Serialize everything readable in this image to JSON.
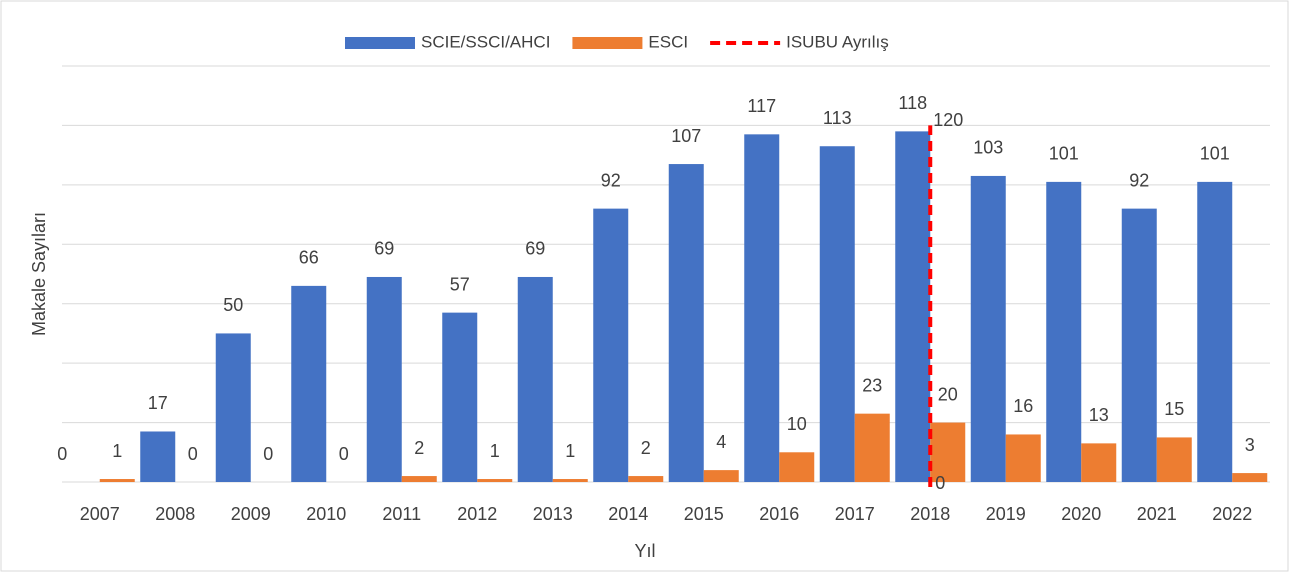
{
  "chart_data": {
    "type": "bar",
    "x_label": "Yıl",
    "y_label": "Makale Sayıları",
    "categories": [
      "2007",
      "2008",
      "2009",
      "2010",
      "2011",
      "2012",
      "2013",
      "2014",
      "2015",
      "2016",
      "2017",
      "2018",
      "2019",
      "2020",
      "2021",
      "2022"
    ],
    "series": [
      {
        "name": "SCIE/SSCI/AHCI",
        "color": "#4472c4",
        "values": [
          0,
          17,
          50,
          66,
          69,
          57,
          69,
          92,
          107,
          117,
          113,
          118,
          103,
          101,
          92,
          101
        ]
      },
      {
        "name": "ESCI",
        "color": "#ed7d31",
        "values": [
          1,
          0,
          0,
          0,
          2,
          1,
          1,
          2,
          4,
          10,
          23,
          20,
          16,
          13,
          15,
          3
        ]
      }
    ],
    "reference_line": {
      "name": "ISUBU Ayrılış",
      "color": "#ff0000",
      "category": "2018",
      "values": [
        0,
        120
      ]
    },
    "ylim": [
      0,
      140
    ],
    "yticks": [
      0,
      20,
      40,
      60,
      80,
      100,
      120,
      140
    ],
    "grid": true
  }
}
